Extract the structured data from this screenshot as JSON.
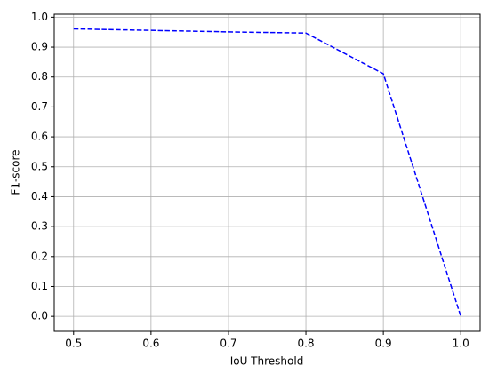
{
  "chart_data": {
    "type": "line",
    "x": [
      0.5,
      0.6,
      0.7,
      0.8,
      0.9,
      {
        "value": 1,
        "label": "1.0"
      }
    ],
    "series": [
      {
        "color": "#0000ff",
        "values": [
          0.961,
          0.956,
          0.951,
          0.947,
          0.811,
          0
        ]
      }
    ],
    "xlabel": "IoU Threshold",
    "ylabel": "F1-score",
    "xlim": [
      0.475,
      1.025
    ],
    "ylim": [
      -0.05,
      1.01
    ],
    "xticks": [
      0.5,
      0.6,
      0.7,
      0.8,
      0.9,
      {
        "value": 1,
        "label": "1.0"
      }
    ],
    "yticks": [
      {
        "value": 0,
        "label": "0.0"
      },
      0.1,
      0.2,
      0.3,
      0.4,
      0.5,
      0.6,
      0.7,
      0.8,
      0.9,
      {
        "value": 1,
        "label": "1.0"
      }
    ],
    "grid": true,
    "linestyle": "dashed"
  }
}
